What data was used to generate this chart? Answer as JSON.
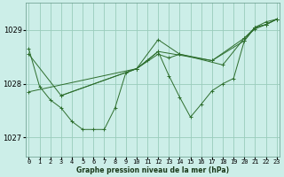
{
  "xlabel": "Graphe pression niveau de la mer (hPa)",
  "bg_color": "#cceee8",
  "grid_color": "#99ccbb",
  "line_color": "#2d6e2d",
  "ylim": [
    1026.65,
    1029.5
  ],
  "xlim": [
    -0.3,
    23.3
  ],
  "yticks": [
    1027,
    1028,
    1029
  ],
  "ytick_labels": [
    "1027",
    "1028",
    "1029"
  ],
  "x_ticks": [
    0,
    1,
    2,
    3,
    4,
    5,
    6,
    7,
    8,
    9,
    10,
    11,
    12,
    13,
    14,
    15,
    16,
    17,
    18,
    19,
    20,
    21,
    22,
    23
  ],
  "series": [
    {
      "x": [
        0,
        1,
        2,
        3,
        4,
        5,
        6,
        7,
        8,
        9,
        10,
        11,
        12,
        13,
        14,
        15,
        16,
        17,
        18,
        19,
        20,
        21,
        22,
        23
      ],
      "y": [
        1028.65,
        1027.95,
        1027.7,
        1027.55,
        1027.3,
        1027.15,
        1027.15,
        1027.15,
        1027.55,
        1028.2,
        1028.28,
        1028.43,
        1028.6,
        1028.15,
        1027.75,
        1027.38,
        1027.62,
        1027.87,
        1028.0,
        1028.1,
        1028.8,
        1029.05,
        1029.15,
        1029.2
      ],
      "marker": true
    },
    {
      "x": [
        0,
        10,
        12,
        17,
        20,
        21,
        22,
        23
      ],
      "y": [
        1027.85,
        1028.28,
        1028.6,
        1028.43,
        1028.8,
        1029.05,
        1029.1,
        1029.2
      ],
      "marker": true
    },
    {
      "x": [
        3,
        10,
        12,
        14,
        17,
        20,
        21,
        22,
        23
      ],
      "y": [
        1027.78,
        1028.28,
        1028.82,
        1028.55,
        1028.43,
        1028.85,
        1029.05,
        1029.1,
        1029.2
      ],
      "marker": true
    },
    {
      "x": [
        0,
        3,
        10,
        12,
        13,
        14,
        18,
        20,
        21,
        22,
        23
      ],
      "y": [
        1028.55,
        1027.78,
        1028.28,
        1028.55,
        1028.48,
        1028.55,
        1028.35,
        1028.85,
        1029.02,
        1029.1,
        1029.2
      ],
      "marker": true
    }
  ]
}
